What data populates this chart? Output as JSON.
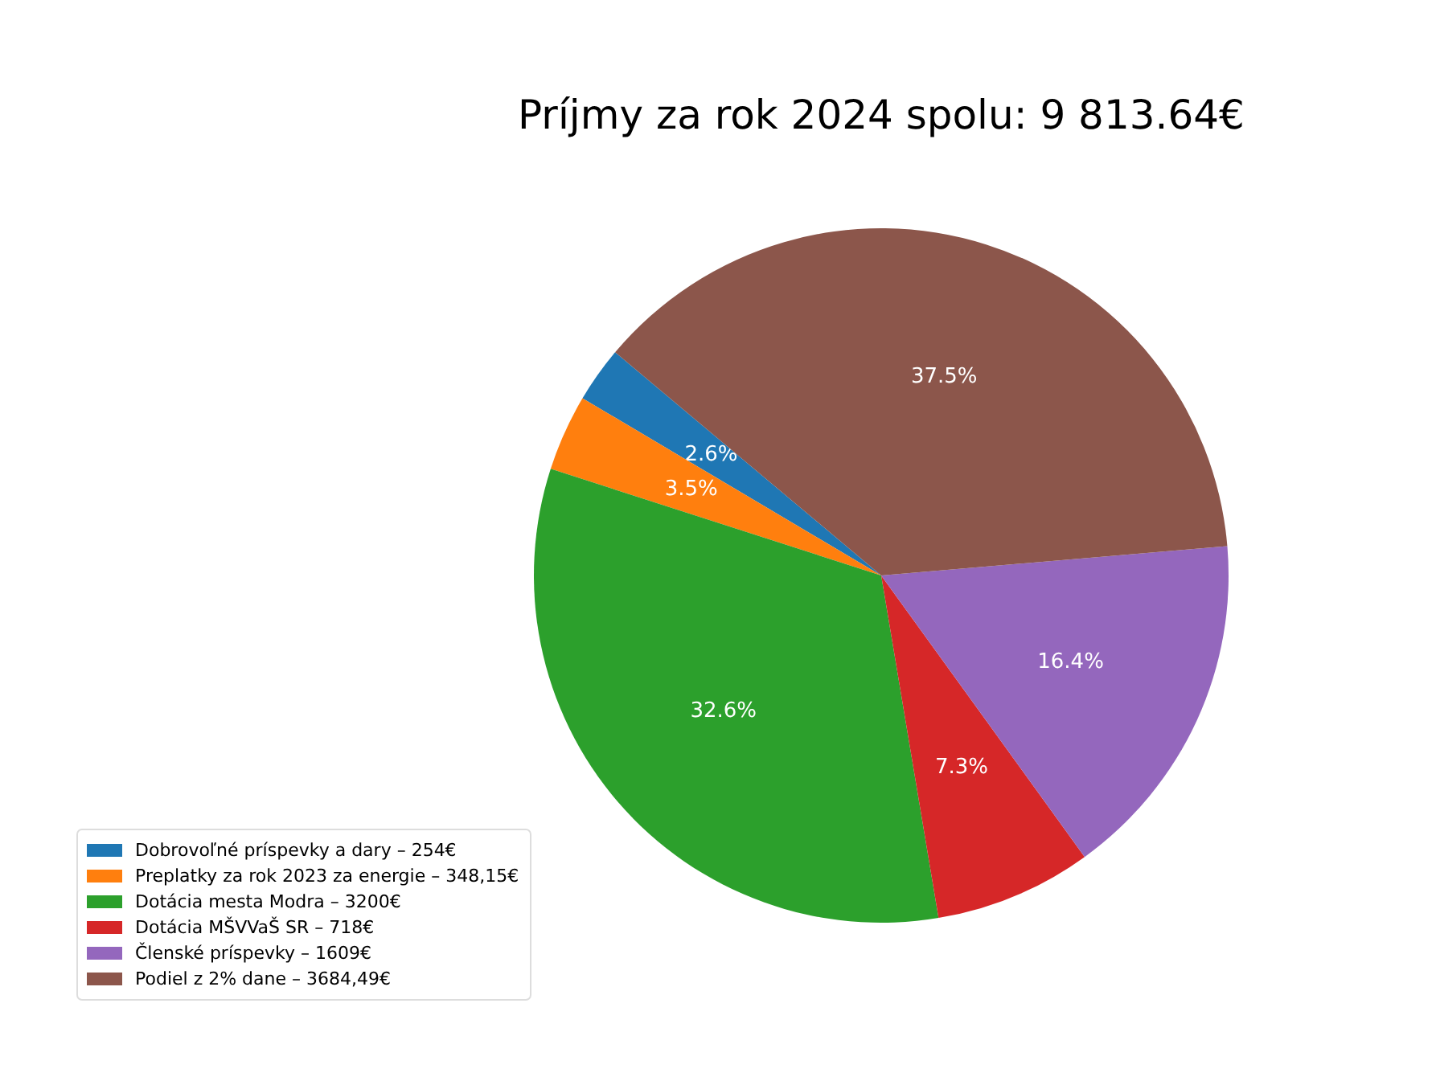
{
  "chart_data": {
    "type": "pie",
    "title": "Príjmy za rok 2024 spolu: 9 813.64€",
    "categories": [
      "Dobrovoľné príspevky a dary – 254€",
      "Preplatky za rok 2023 za energie – 348,15€",
      "Dotácia mesta Modra – 3200€",
      "Dotácia MŠVVaŠ SR – 718€",
      "Členské príspevky – 1609€",
      "Podiel z 2% dane – 3684,49€"
    ],
    "values": [
      2.59,
      3.55,
      32.61,
      7.32,
      16.39,
      37.54
    ],
    "colors": [
      "#1f77b4",
      "#ff7f0e",
      "#2ca02c",
      "#d62728",
      "#9467bd",
      "#8c564b"
    ],
    "value_labels": [
      "2.6%",
      "3.5%",
      "32.6%",
      "7.3%",
      "16.4%",
      "37.5%"
    ],
    "legend": "bottom left"
  }
}
